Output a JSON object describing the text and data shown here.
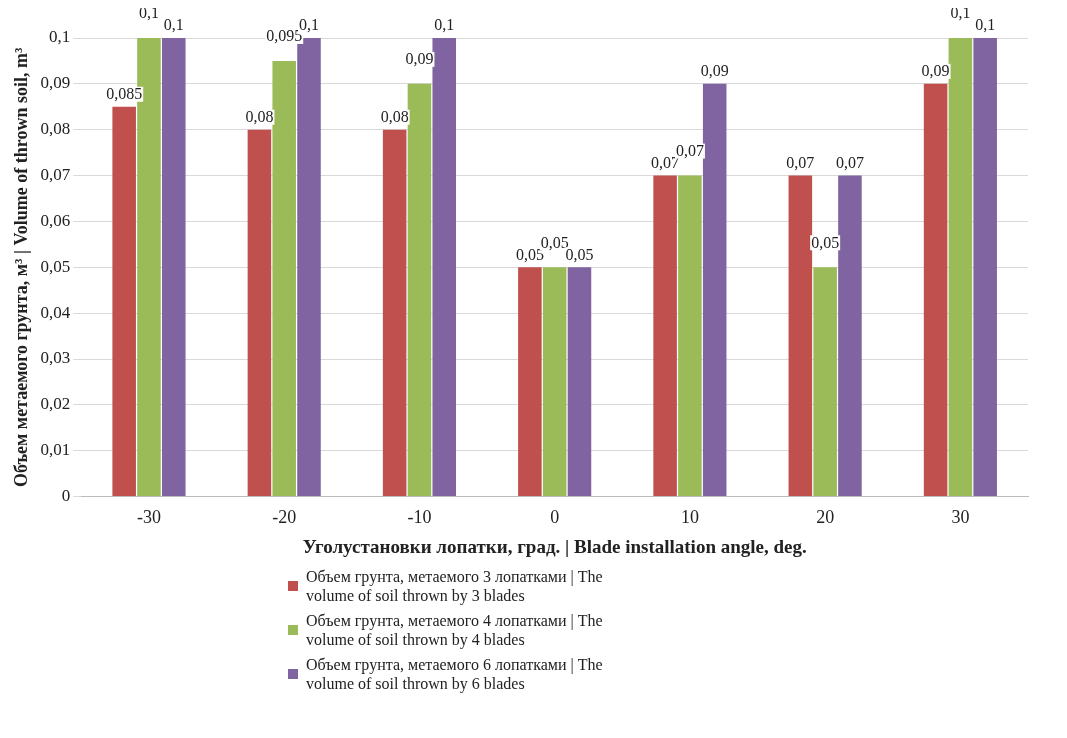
{
  "chart_data": {
    "type": "bar",
    "xlabel": "Уголустановки лопатки, град. | Blade installation angle, deg.",
    "ylabel": "Объем метаемого грунта, м³ | Volume of thrown soil, m³",
    "categories": [
      "-30",
      "-20",
      "-10",
      "0",
      "10",
      "20",
      "30"
    ],
    "series": [
      {
        "name": "Объем грунта, метаемого 3 лопатками | The volume of soil thrown by 3 blades",
        "color": "#c0504d",
        "values": [
          0.085,
          0.08,
          0.08,
          0.05,
          0.07,
          0.07,
          0.09
        ],
        "value_labels": [
          "0,085",
          "0,08",
          "0,08",
          "0,05",
          "0,07",
          "0,07",
          "0,09"
        ]
      },
      {
        "name": "Объем грунта, метаемого 4 лопатками | The volume of soil thrown by 4 blades",
        "color": "#9bbb59",
        "values": [
          0.1,
          0.095,
          0.09,
          0.05,
          0.07,
          0.05,
          0.1
        ],
        "value_labels": [
          "0,1",
          "0,095",
          "0,09",
          "0,05",
          "0,07",
          "0,05",
          "0,1"
        ]
      },
      {
        "name": "Объем грунта, метаемого 6 лопатками | The volume of soil thrown by 6 blades",
        "color": "#8064a2",
        "values": [
          0.1,
          0.1,
          0.1,
          0.05,
          0.09,
          0.07,
          0.1
        ],
        "value_labels": [
          "0,1",
          "0,1",
          "0,1",
          "0,05",
          "0,09",
          "0,07",
          "0,1"
        ]
      }
    ],
    "ylim": [
      0,
      0.1
    ],
    "yticks": [
      {
        "value": 0,
        "label": "0"
      },
      {
        "value": 0.01,
        "label": "0,01"
      },
      {
        "value": 0.02,
        "label": "0,02"
      },
      {
        "value": 0.03,
        "label": "0,03"
      },
      {
        "value": 0.04,
        "label": "0,04"
      },
      {
        "value": 0.05,
        "label": "0,05"
      },
      {
        "value": 0.06,
        "label": "0,06"
      },
      {
        "value": 0.07,
        "label": "0,07"
      },
      {
        "value": 0.08,
        "label": "0,08"
      },
      {
        "value": 0.09,
        "label": "0,09"
      },
      {
        "value": 0.1,
        "label": "0,1"
      }
    ],
    "grid": "y",
    "legend": "bottom"
  }
}
